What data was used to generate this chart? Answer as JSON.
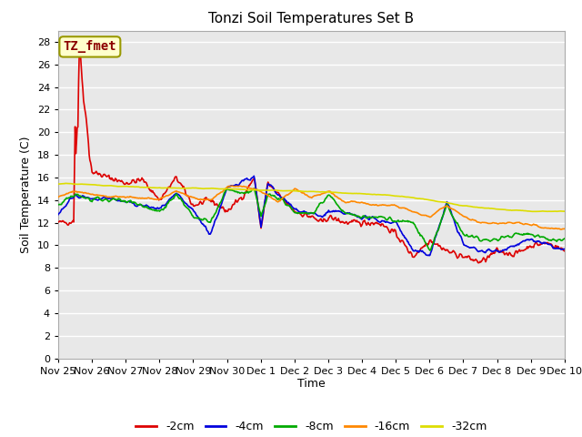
{
  "title": "Tonzi Soil Temperatures Set B",
  "xlabel": "Time",
  "ylabel": "Soil Temperature (C)",
  "ylim": [
    0,
    29
  ],
  "yticks": [
    0,
    2,
    4,
    6,
    8,
    10,
    12,
    14,
    16,
    18,
    20,
    22,
    24,
    26,
    28
  ],
  "xtick_labels": [
    "Nov 25",
    "Nov 26",
    "Nov 27",
    "Nov 28",
    "Nov 29",
    "Nov 30",
    "Dec 1",
    "Dec 2",
    "Dec 3",
    "Dec 4",
    "Dec 5",
    "Dec 6",
    "Dec 7",
    "Dec 8",
    "Dec 9",
    "Dec 10"
  ],
  "annotation": {
    "text": "TZ_fmet",
    "fontsize": 10,
    "color": "#8b0000",
    "bg": "#ffffcc",
    "border": "#999900"
  },
  "plot_background": "#e8e8e8",
  "grid_color": "#ffffff",
  "legend_entries": [
    "-2cm",
    "-4cm",
    "-8cm",
    "-16cm",
    "-32cm"
  ],
  "legend_colors": [
    "#dd0000",
    "#0000dd",
    "#00aa00",
    "#ff8800",
    "#dddd00"
  ]
}
